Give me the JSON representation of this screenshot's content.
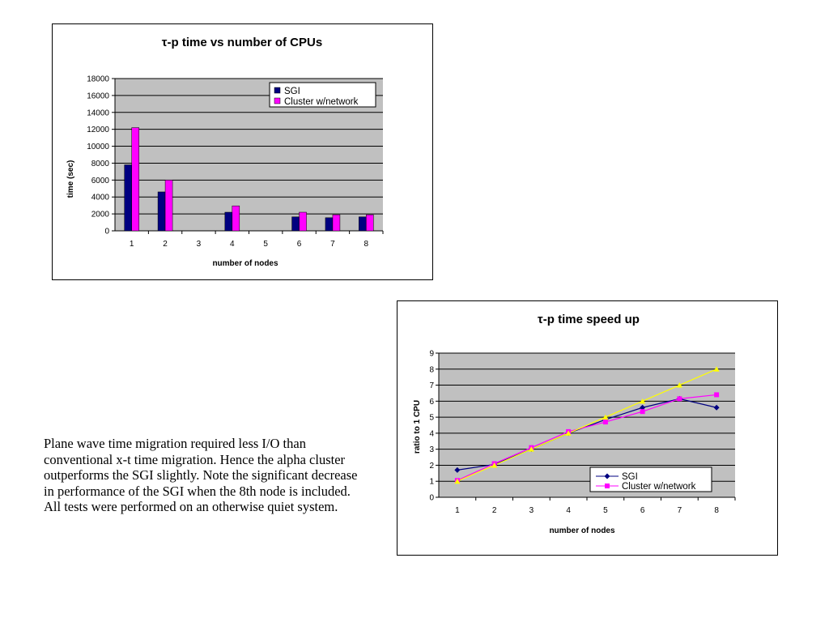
{
  "colors": {
    "plot_background": "#c0c0c0",
    "sgi": "#000080",
    "cluster": "#ff00ff",
    "ideal": "#ffff00",
    "grid": "#000000"
  },
  "description": "Plane wave time migration required less I/O than conventional x-t time migration. Hence the alpha cluster outperforms the SGI slightly. Note the significant decrease in performance of the SGI when the 8th node is included. All tests were performed on an otherwise quiet system.",
  "chart_data": [
    {
      "type": "bar",
      "title_symbol": "τ",
      "title_rest": "-p time vs number of CPUs",
      "xlabel": "number of nodes",
      "ylabel": "time (sec)",
      "ylim": [
        0,
        18000
      ],
      "y_ticks": [
        "0",
        "2000",
        "4000",
        "6000",
        "8000",
        "10000",
        "12000",
        "14000",
        "16000",
        "18000"
      ],
      "categories": [
        "1",
        "2",
        "3",
        "4",
        "5",
        "6",
        "7",
        "8"
      ],
      "series": [
        {
          "name": "SGI",
          "values": [
            7800,
            4600,
            null,
            2200,
            null,
            1650,
            1550,
            1650
          ]
        },
        {
          "name": "Cluster w/network",
          "values": [
            12200,
            6000,
            null,
            2950,
            null,
            2200,
            1900,
            1900
          ]
        }
      ],
      "grid": true,
      "legend_position": "top-right"
    },
    {
      "type": "line",
      "title_symbol": "τ",
      "title_rest": "-p time speed up",
      "xlabel": "number of nodes",
      "ylabel": "ratio to 1 CPU",
      "ylim": [
        0,
        9
      ],
      "y_ticks": [
        "0",
        "1",
        "2",
        "3",
        "4",
        "5",
        "6",
        "7",
        "8",
        "9"
      ],
      "categories": [
        "1",
        "2",
        "3",
        "4",
        "5",
        "6",
        "7",
        "8"
      ],
      "series": [
        {
          "name": "SGI",
          "values": [
            1.7,
            2.05,
            3.0,
            4.0,
            4.85,
            5.6,
            6.15,
            5.6
          ]
        },
        {
          "name": "Cluster w/network",
          "values": [
            1.05,
            2.1,
            3.1,
            4.1,
            4.7,
            5.35,
            6.15,
            6.4
          ]
        },
        {
          "values": [
            1,
            2,
            3,
            4,
            5,
            6,
            7,
            8
          ]
        }
      ],
      "grid": true,
      "legend_position": "bottom-right"
    }
  ]
}
